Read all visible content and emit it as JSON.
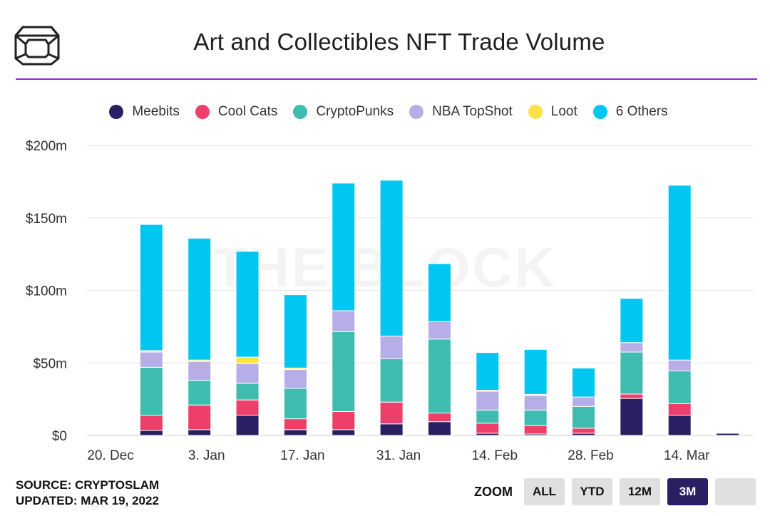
{
  "header": {
    "title": "Art and Collectibles NFT Trade Volume"
  },
  "watermark": "THE BLOCK",
  "legend": [
    {
      "name": "Meebits",
      "color": "#2b1f63"
    },
    {
      "name": "Cool Cats",
      "color": "#ee3f6b"
    },
    {
      "name": "CryptoPunks",
      "color": "#3dbcaf"
    },
    {
      "name": "NBA TopShot",
      "color": "#b7aee8"
    },
    {
      "name": "Loot",
      "color": "#ffe14a"
    },
    {
      "name": "6 Others",
      "color": "#00c6f2"
    }
  ],
  "chart_data": {
    "type": "bar",
    "stacked": true,
    "y_tick_labels": [
      "$0",
      "$50m",
      "$100m",
      "$150m",
      "$200m"
    ],
    "ylim": [
      0,
      200
    ],
    "y_unit": "$m",
    "x_tick_labels": [
      "20. Dec",
      "3. Jan",
      "17. Jan",
      "31. Jan",
      "14. Feb",
      "28. Feb",
      "14. Mar"
    ],
    "categories": [
      "2021-12-20",
      "2021-12-27",
      "2022-01-03",
      "2022-01-10",
      "2022-01-17",
      "2022-01-24",
      "2022-01-31",
      "2022-02-07",
      "2022-02-14",
      "2022-02-21",
      "2022-02-28",
      "2022-03-07",
      "2022-03-14",
      "2022-03-21"
    ],
    "series": [
      {
        "name": "Meebits",
        "values": [
          0,
          3.5,
          4,
          14,
          4,
          4,
          8,
          9.5,
          1.5,
          1,
          1.5,
          25.5,
          14,
          1.5
        ]
      },
      {
        "name": "Cool Cats",
        "values": [
          0,
          10.5,
          17,
          10.5,
          7.5,
          12.5,
          15,
          6,
          7,
          6,
          3.5,
          3,
          8,
          0
        ]
      },
      {
        "name": "CryptoPunks",
        "values": [
          0,
          33,
          17,
          11.5,
          21,
          55,
          30,
          51,
          9,
          10.5,
          15,
          29,
          22.5,
          0
        ]
      },
      {
        "name": "NBA TopShot",
        "values": [
          0,
          10.5,
          13,
          13.5,
          13,
          14.5,
          15.5,
          12,
          13,
          10,
          6.5,
          6.5,
          7.5,
          0
        ]
      },
      {
        "name": "Loot",
        "values": [
          0,
          1,
          1,
          4.5,
          1,
          0,
          0,
          0,
          0.7,
          0.8,
          0,
          0,
          0,
          0
        ]
      },
      {
        "name": "6 Others",
        "values": [
          0,
          87,
          84,
          73,
          50.5,
          88,
          107.5,
          40,
          26,
          31,
          20,
          30.5,
          120.5,
          0
        ]
      }
    ],
    "grid": true,
    "legend_position": "top"
  },
  "footer": {
    "source": "SOURCE: CRYPTOSLAM",
    "updated": "UPDATED: MAR 19, 2022"
  },
  "zoom": {
    "label": "ZOOM",
    "buttons": [
      "ALL",
      "YTD",
      "12M",
      "3M",
      ""
    ],
    "selected": "3M"
  }
}
